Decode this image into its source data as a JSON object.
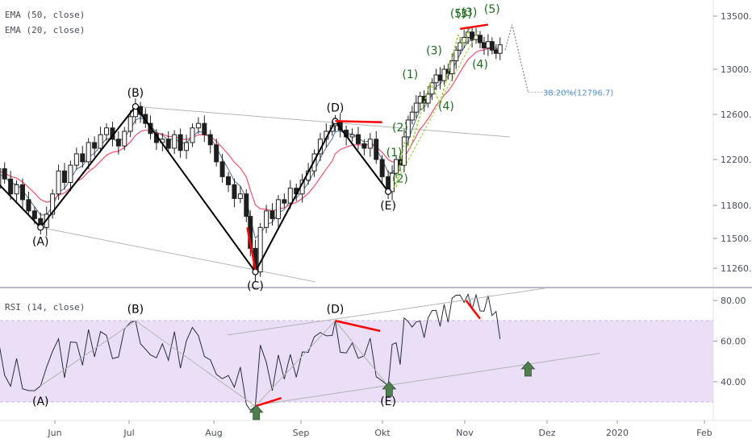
{
  "indicators": {
    "ema50": "EMA (50, close)",
    "ema20": "EMA (20, close)",
    "rsi": "RSI (14, close)"
  },
  "colors": {
    "candle": "#1f1f1f",
    "ema20": "#4a6b8f",
    "ema50": "#f0506e",
    "pattern_line": "#000000",
    "trend_line": "#b4b4b4",
    "impulse_line": "#9acd32",
    "wave_label": "#1e6b1e",
    "red_mark": "#ff0000",
    "rsi_band": "#eadff7",
    "rsi_band_border": "#c9b6e4",
    "arrow": "#4f7f4f",
    "fib_text": "#4a90c8"
  },
  "chart_data": [
    {
      "type": "candlestick",
      "price_axis": {
        "ticks": [
          "13500.0",
          "13000.0",
          "12600.0",
          "12200.0",
          "11800.0",
          "11500.0",
          "11260.0"
        ],
        "tick_values": [
          13500,
          13000,
          12600,
          12200,
          11800,
          11500,
          11260
        ]
      },
      "time_axis": {
        "labels": [
          "Jun",
          "Jul",
          "Aug",
          "Sep",
          "Okt",
          "Nov",
          "Dez",
          "2020",
          "Feb"
        ]
      },
      "series": [
        {
          "name": "EMA (50, close)"
        },
        {
          "name": "EMA (20, close)"
        }
      ],
      "pattern_points": [
        {
          "label": "(A)",
          "value": 11600
        },
        {
          "label": "(B)",
          "value": 12670
        },
        {
          "label": "(C)",
          "value": 11230
        },
        {
          "label": "(D)",
          "value": 12540
        },
        {
          "label": "(E)",
          "value": 11920
        }
      ],
      "wave_labels": [
        "(1)",
        "(2)",
        "(1)",
        "(2)",
        "(3)",
        "(4)",
        "(3)",
        "(4)",
        "(5)",
        "(5)",
        "(3)"
      ],
      "fib_annotation": "38.20%(12796.7)"
    },
    {
      "type": "line",
      "title": "RSI (14, close)",
      "y_axis": {
        "ticks": [
          "80.00",
          "60.00",
          "40.00"
        ],
        "tick_values": [
          80,
          60,
          40
        ]
      },
      "band": [
        30,
        70
      ],
      "pattern_points": [
        {
          "label": "(A)",
          "value": 38
        },
        {
          "label": "(B)",
          "value": 70
        },
        {
          "label": "(D)",
          "value": 70
        },
        {
          "label": "(E)",
          "value": 38
        }
      ]
    }
  ]
}
